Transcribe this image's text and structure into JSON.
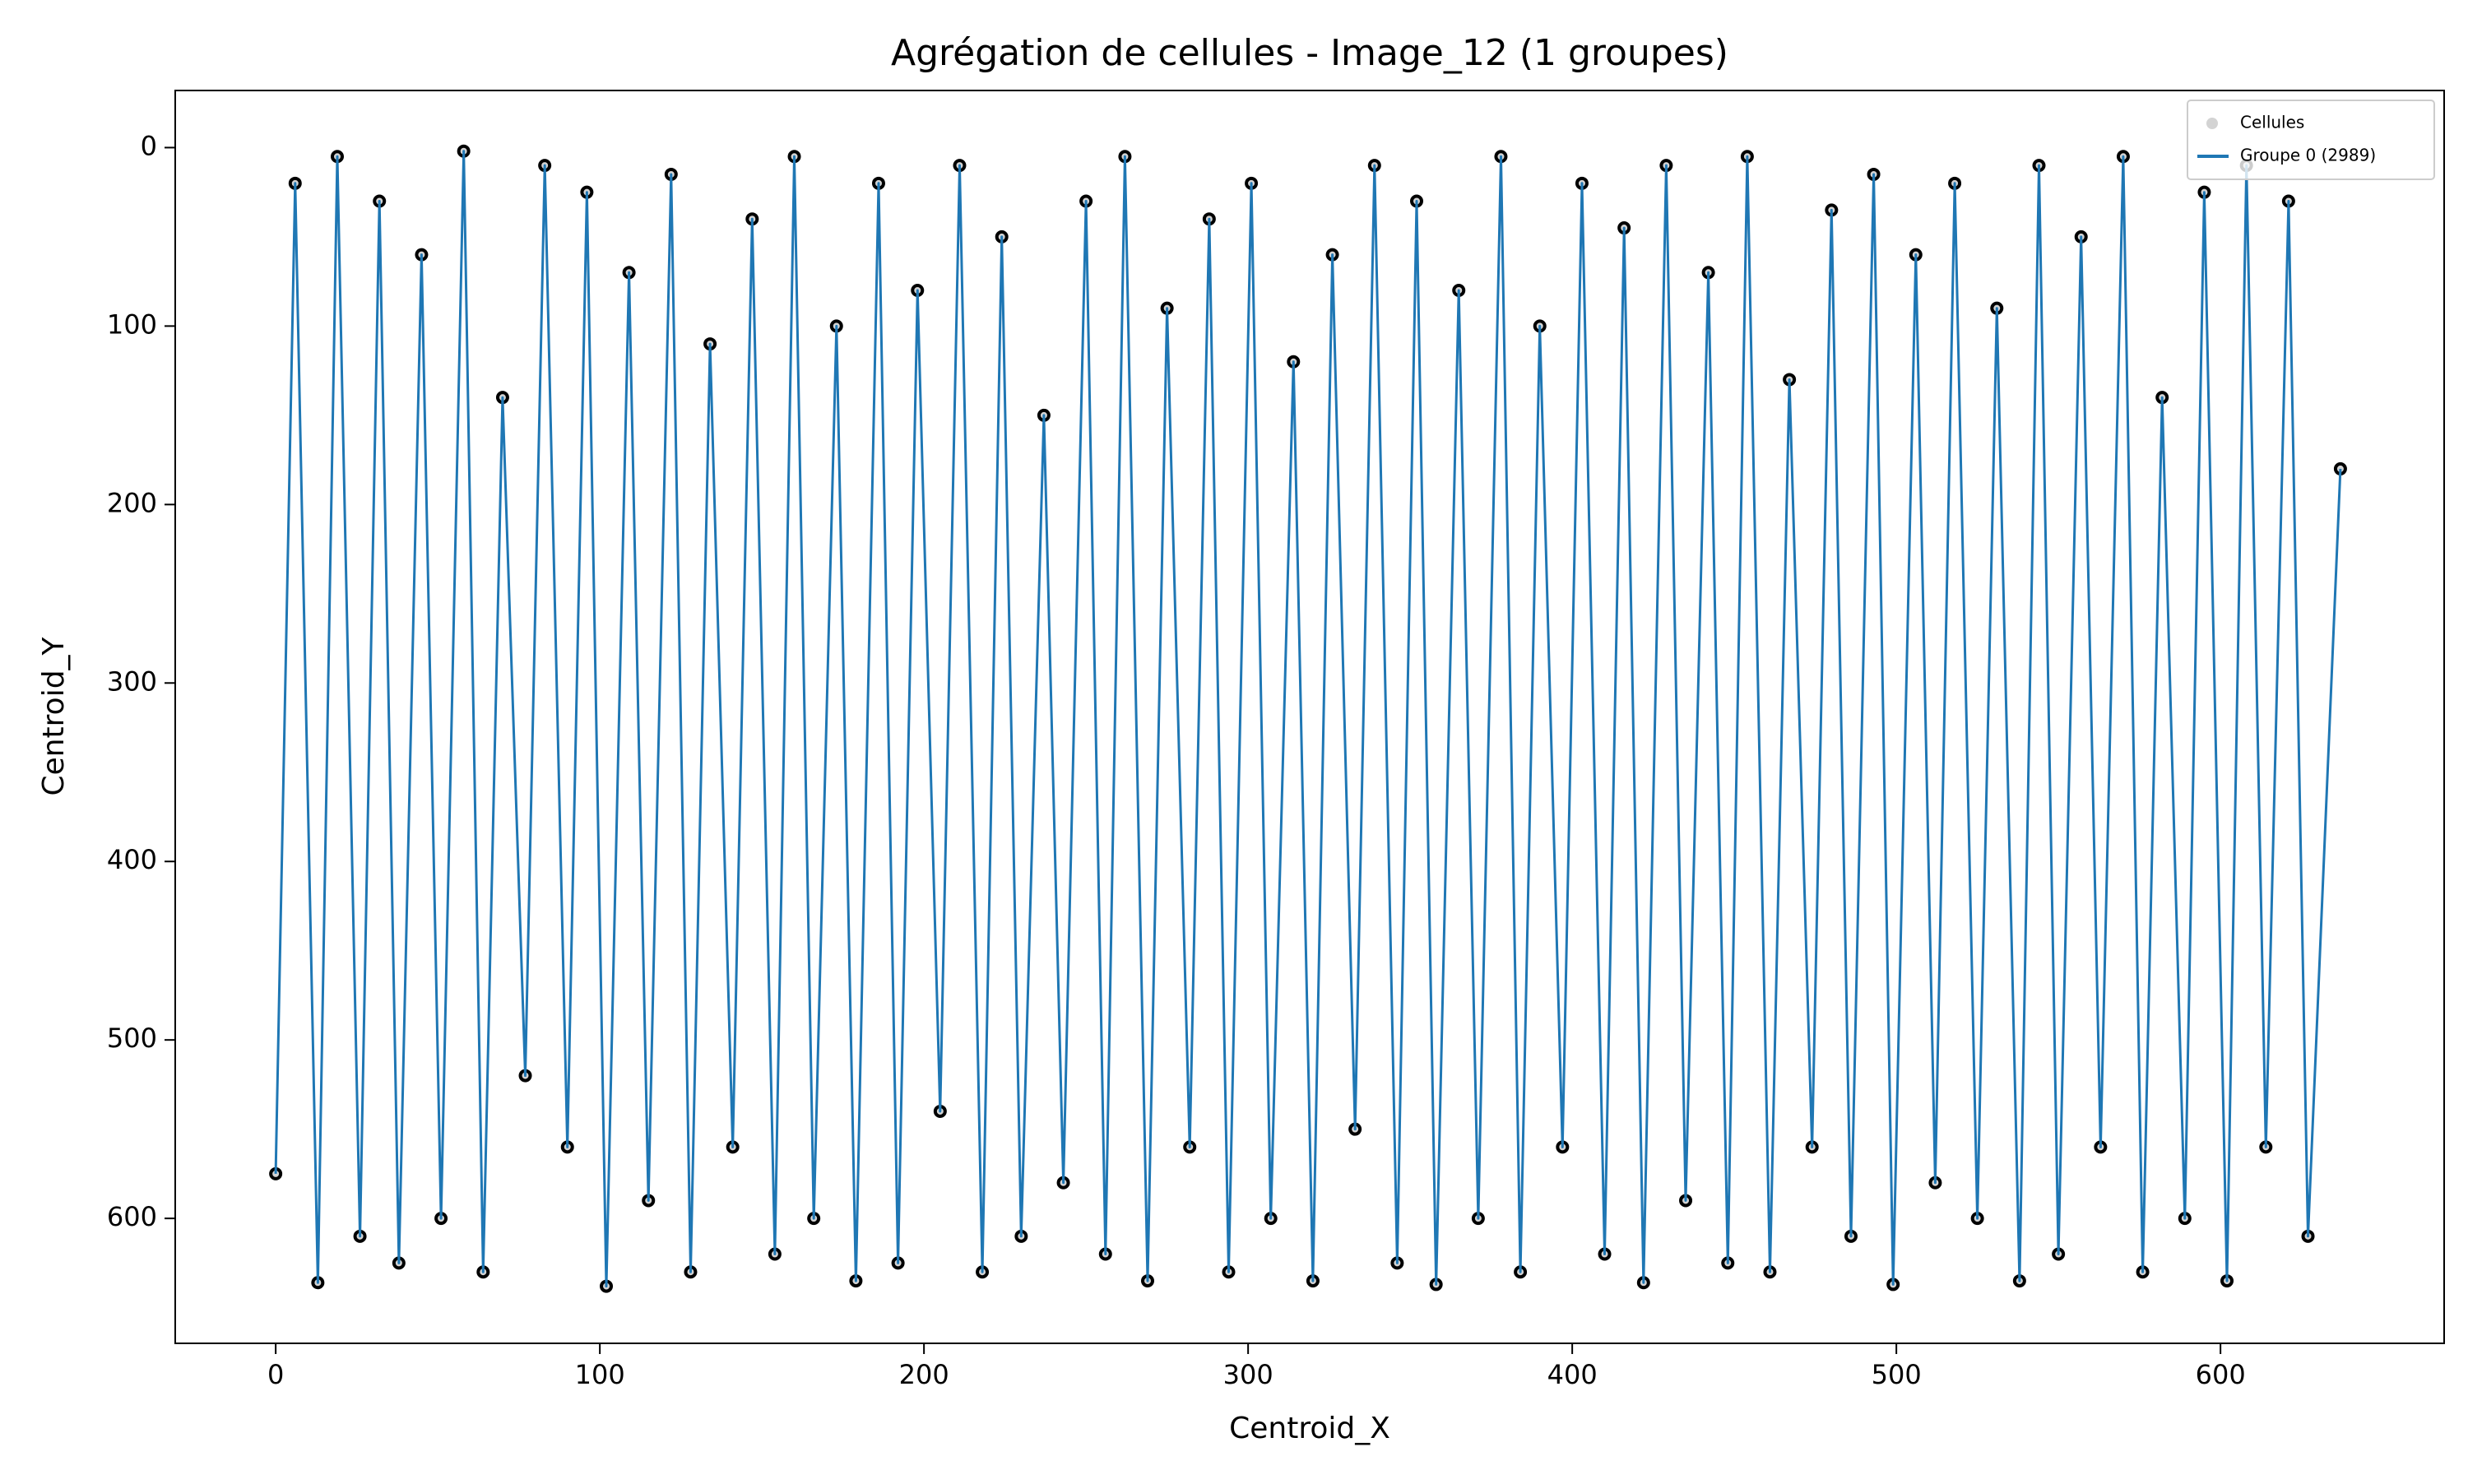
{
  "chart_data": {
    "type": "line",
    "title": "Agrégation de cellules - Image_12 (1 groupes)",
    "x_label": "Centroid_X",
    "y_label": "Centroid_Y",
    "xlim": [
      -31,
      669
    ],
    "xticks": [
      0,
      100,
      200,
      300,
      400,
      500,
      600
    ],
    "ylim": [
      670,
      -32
    ],
    "yticks": [
      0,
      100,
      200,
      300,
      400,
      500,
      600
    ],
    "legend": "upper right",
    "series": [
      {
        "name": "Cellules",
        "type": "scatter",
        "color": "#d3d3d3",
        "edgecolor": "#000000",
        "x": [
          0,
          6,
          13,
          19,
          26,
          32,
          38,
          45,
          51,
          58,
          64,
          70,
          77,
          83,
          90,
          96,
          102,
          109,
          115,
          122,
          128,
          134,
          141,
          147,
          154,
          160,
          166,
          173,
          179,
          186,
          192,
          198,
          205,
          211,
          218,
          224,
          230,
          237,
          243,
          250,
          256,
          262,
          269,
          275,
          282,
          288,
          294,
          301,
          307,
          314,
          320,
          326,
          333,
          339,
          346,
          352,
          358,
          365,
          371,
          378,
          384,
          390,
          397,
          403,
          410,
          416,
          422,
          429,
          435,
          442,
          448,
          454,
          461,
          467,
          474,
          480,
          486,
          493,
          499,
          506,
          512,
          518,
          525,
          531,
          538,
          544,
          550,
          557,
          563,
          570,
          576,
          582,
          589,
          595,
          602,
          608,
          614,
          621,
          627,
          637
        ],
        "values": [
          575,
          20,
          636,
          5,
          610,
          30,
          625,
          60,
          600,
          2,
          630,
          140,
          520,
          10,
          560,
          25,
          638,
          70,
          590,
          15,
          630,
          110,
          560,
          40,
          620,
          5,
          600,
          100,
          635,
          20,
          625,
          80,
          540,
          10,
          630,
          50,
          610,
          150,
          580,
          30,
          620,
          5,
          635,
          90,
          560,
          40,
          630,
          20,
          600,
          120,
          635,
          60,
          550,
          10,
          625,
          30,
          637,
          80,
          600,
          5,
          630,
          100,
          560,
          20,
          620,
          45,
          636,
          10,
          590,
          70,
          625,
          5,
          630,
          130,
          560,
          35,
          610,
          15,
          637,
          60,
          580,
          20,
          600,
          90,
          635,
          10,
          620,
          50,
          560,
          5,
          630,
          140,
          600,
          25,
          635,
          10,
          560,
          30,
          610,
          180
        ]
      },
      {
        "name": "Groupe 0 (2989)",
        "type": "line",
        "color": "#1f77b4",
        "x": [
          0,
          6,
          13,
          19,
          26,
          32,
          38,
          45,
          51,
          58,
          64,
          70,
          77,
          83,
          90,
          96,
          102,
          109,
          115,
          122,
          128,
          134,
          141,
          147,
          154,
          160,
          166,
          173,
          179,
          186,
          192,
          198,
          205,
          211,
          218,
          224,
          230,
          237,
          243,
          250,
          256,
          262,
          269,
          275,
          282,
          288,
          294,
          301,
          307,
          314,
          320,
          326,
          333,
          339,
          346,
          352,
          358,
          365,
          371,
          378,
          384,
          390,
          397,
          403,
          410,
          416,
          422,
          429,
          435,
          442,
          448,
          454,
          461,
          467,
          474,
          480,
          486,
          493,
          499,
          506,
          512,
          518,
          525,
          531,
          538,
          544,
          550,
          557,
          563,
          570,
          576,
          582,
          589,
          595,
          602,
          608,
          614,
          621,
          627,
          637
        ],
        "values": [
          575,
          20,
          636,
          5,
          610,
          30,
          625,
          60,
          600,
          2,
          630,
          140,
          520,
          10,
          560,
          25,
          638,
          70,
          590,
          15,
          630,
          110,
          560,
          40,
          620,
          5,
          600,
          100,
          635,
          20,
          625,
          80,
          540,
          10,
          630,
          50,
          610,
          150,
          580,
          30,
          620,
          5,
          635,
          90,
          560,
          40,
          630,
          20,
          600,
          120,
          635,
          60,
          550,
          10,
          625,
          30,
          637,
          80,
          600,
          5,
          630,
          100,
          560,
          20,
          620,
          45,
          636,
          10,
          590,
          70,
          625,
          5,
          630,
          130,
          560,
          35,
          610,
          15,
          637,
          60,
          580,
          20,
          600,
          90,
          635,
          10,
          620,
          50,
          560,
          5,
          630,
          140,
          600,
          25,
          635,
          10,
          560,
          30,
          610,
          180
        ]
      }
    ]
  }
}
